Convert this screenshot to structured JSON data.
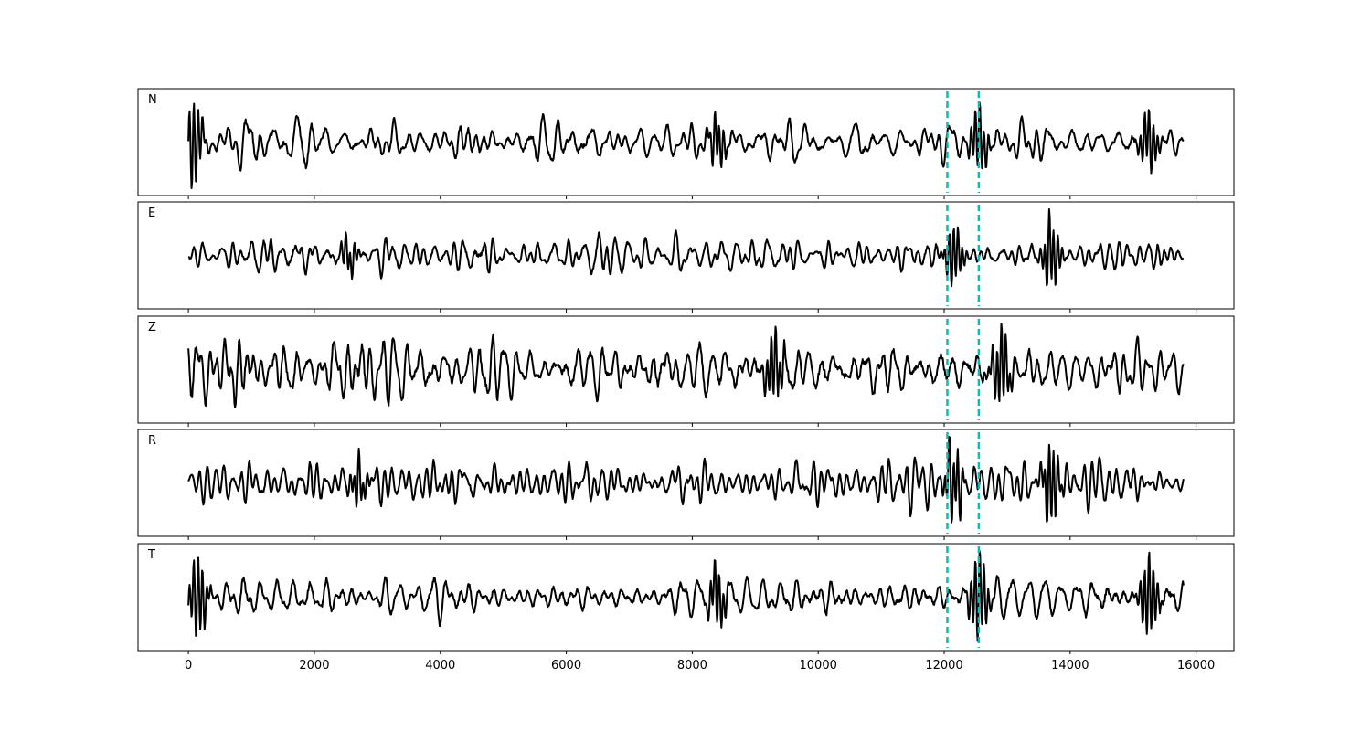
{
  "chart_data": {
    "type": "line",
    "title": "",
    "xlabel": "",
    "ylabel": "",
    "xlim": [
      -800,
      16600
    ],
    "x_range": [
      0,
      15800
    ],
    "xticks": [
      0,
      2000,
      4000,
      6000,
      8000,
      10000,
      12000,
      14000,
      16000
    ],
    "x_tick_labels": [
      "0",
      "2000",
      "4000",
      "6000",
      "8000",
      "10000",
      "12000",
      "14000",
      "16000"
    ],
    "grid": false,
    "legend": "none",
    "line_color": "#000000",
    "marker_color": "#00bfbf",
    "markers": [
      12050,
      12550
    ],
    "panels": [
      {
        "name": "N",
        "seed": 11,
        "bursts": [
          {
            "x": 80,
            "amp": 3.0
          },
          {
            "x": 8400,
            "amp": 1.6
          },
          {
            "x": 12550,
            "amp": 2.2
          },
          {
            "x": 15250,
            "amp": 2.0
          }
        ]
      },
      {
        "name": "E",
        "seed": 23,
        "bursts": [
          {
            "x": 2550,
            "amp": 1.5
          },
          {
            "x": 12150,
            "amp": 2.8
          },
          {
            "x": 13700,
            "amp": 3.2
          }
        ]
      },
      {
        "name": "Z",
        "seed": 37,
        "bursts": [
          {
            "x": 9300,
            "amp": 1.4
          },
          {
            "x": 12900,
            "amp": 1.6
          }
        ]
      },
      {
        "name": "R",
        "seed": 41,
        "bursts": [
          {
            "x": 2700,
            "amp": 1.8
          },
          {
            "x": 12150,
            "amp": 3.2
          },
          {
            "x": 13700,
            "amp": 3.5
          }
        ]
      },
      {
        "name": "T",
        "seed": 53,
        "bursts": [
          {
            "x": 150,
            "amp": 2.4
          },
          {
            "x": 8400,
            "amp": 1.7
          },
          {
            "x": 12550,
            "amp": 2.6
          },
          {
            "x": 15250,
            "amp": 2.4
          }
        ]
      }
    ]
  }
}
